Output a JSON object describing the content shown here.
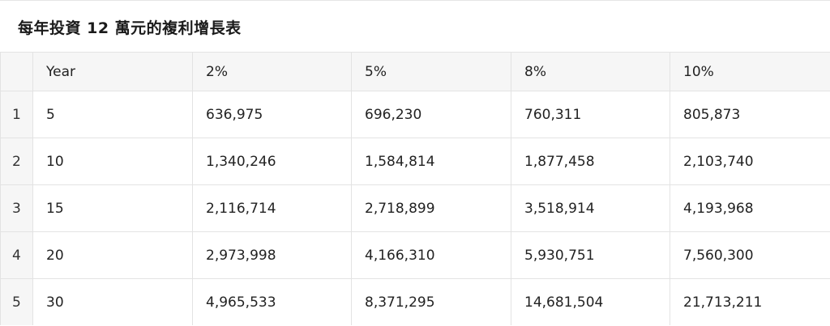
{
  "document": {
    "title": "每年投資 12 萬元的複利增長表"
  },
  "table": {
    "columns": [
      "",
      "Year",
      "2%",
      "5%",
      "8%",
      "10%"
    ],
    "rows": [
      [
        "1",
        "5",
        "636,975",
        "696,230",
        "760,311",
        "805,873"
      ],
      [
        "2",
        "10",
        "1,340,246",
        "1,584,814",
        "1,877,458",
        "2,103,740"
      ],
      [
        "3",
        "15",
        "2,116,714",
        "2,718,899",
        "3,518,914",
        "4,193,968"
      ],
      [
        "4",
        "20",
        "2,973,998",
        "4,166,310",
        "5,930,751",
        "7,560,300"
      ],
      [
        "5",
        "30",
        "4,965,533",
        "8,371,295",
        "14,681,504",
        "21,713,211"
      ]
    ]
  }
}
